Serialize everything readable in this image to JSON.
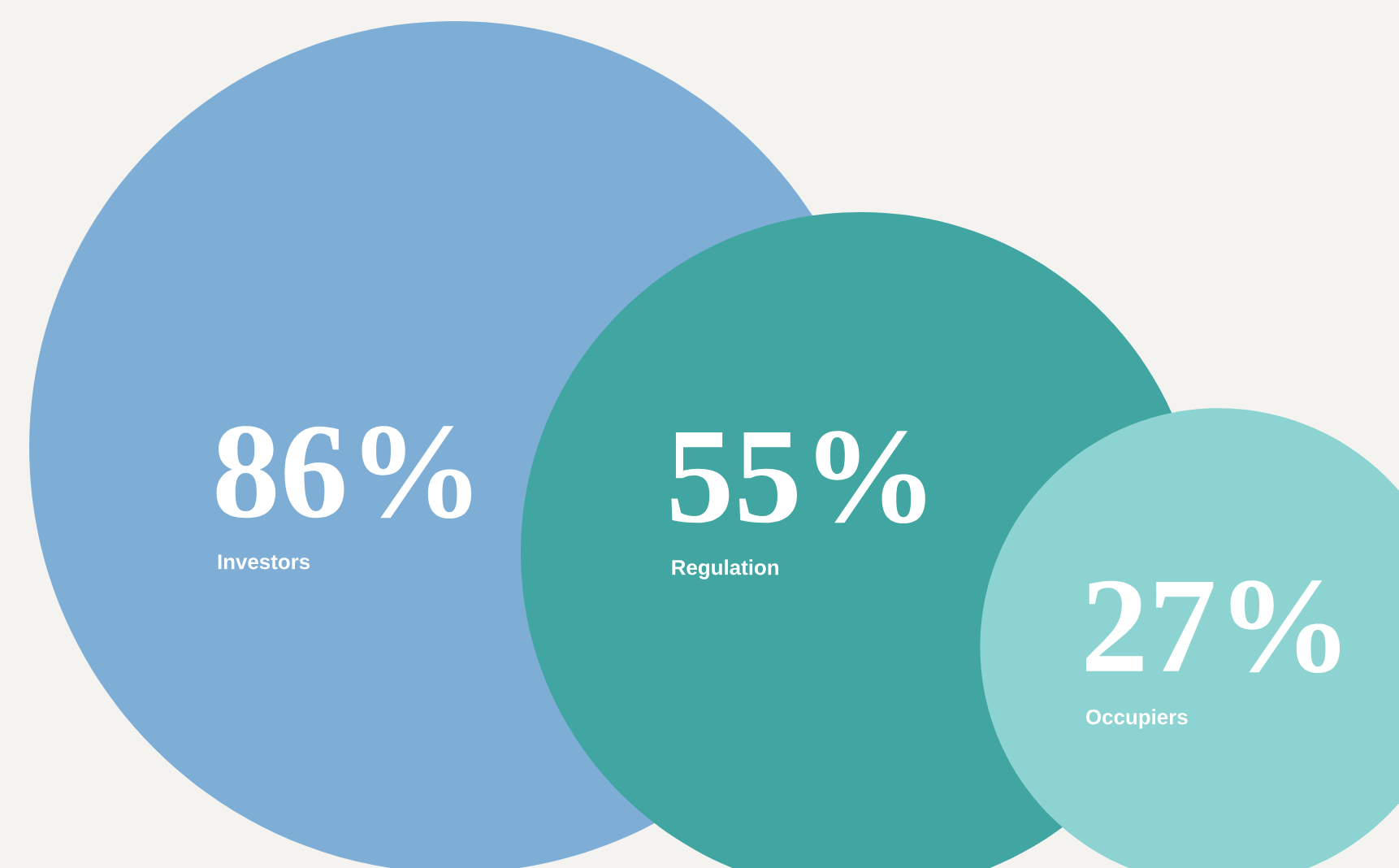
{
  "chart_data": {
    "type": "other",
    "categories": [
      "Investors",
      "Regulation",
      "Occupiers"
    ],
    "values": [
      86,
      55,
      27
    ],
    "value_labels": [
      "86%",
      "55%",
      "27%"
    ],
    "colors": [
      "#7eaed6",
      "#41a6a2",
      "#8cd3d1"
    ],
    "data_labels": true
  }
}
